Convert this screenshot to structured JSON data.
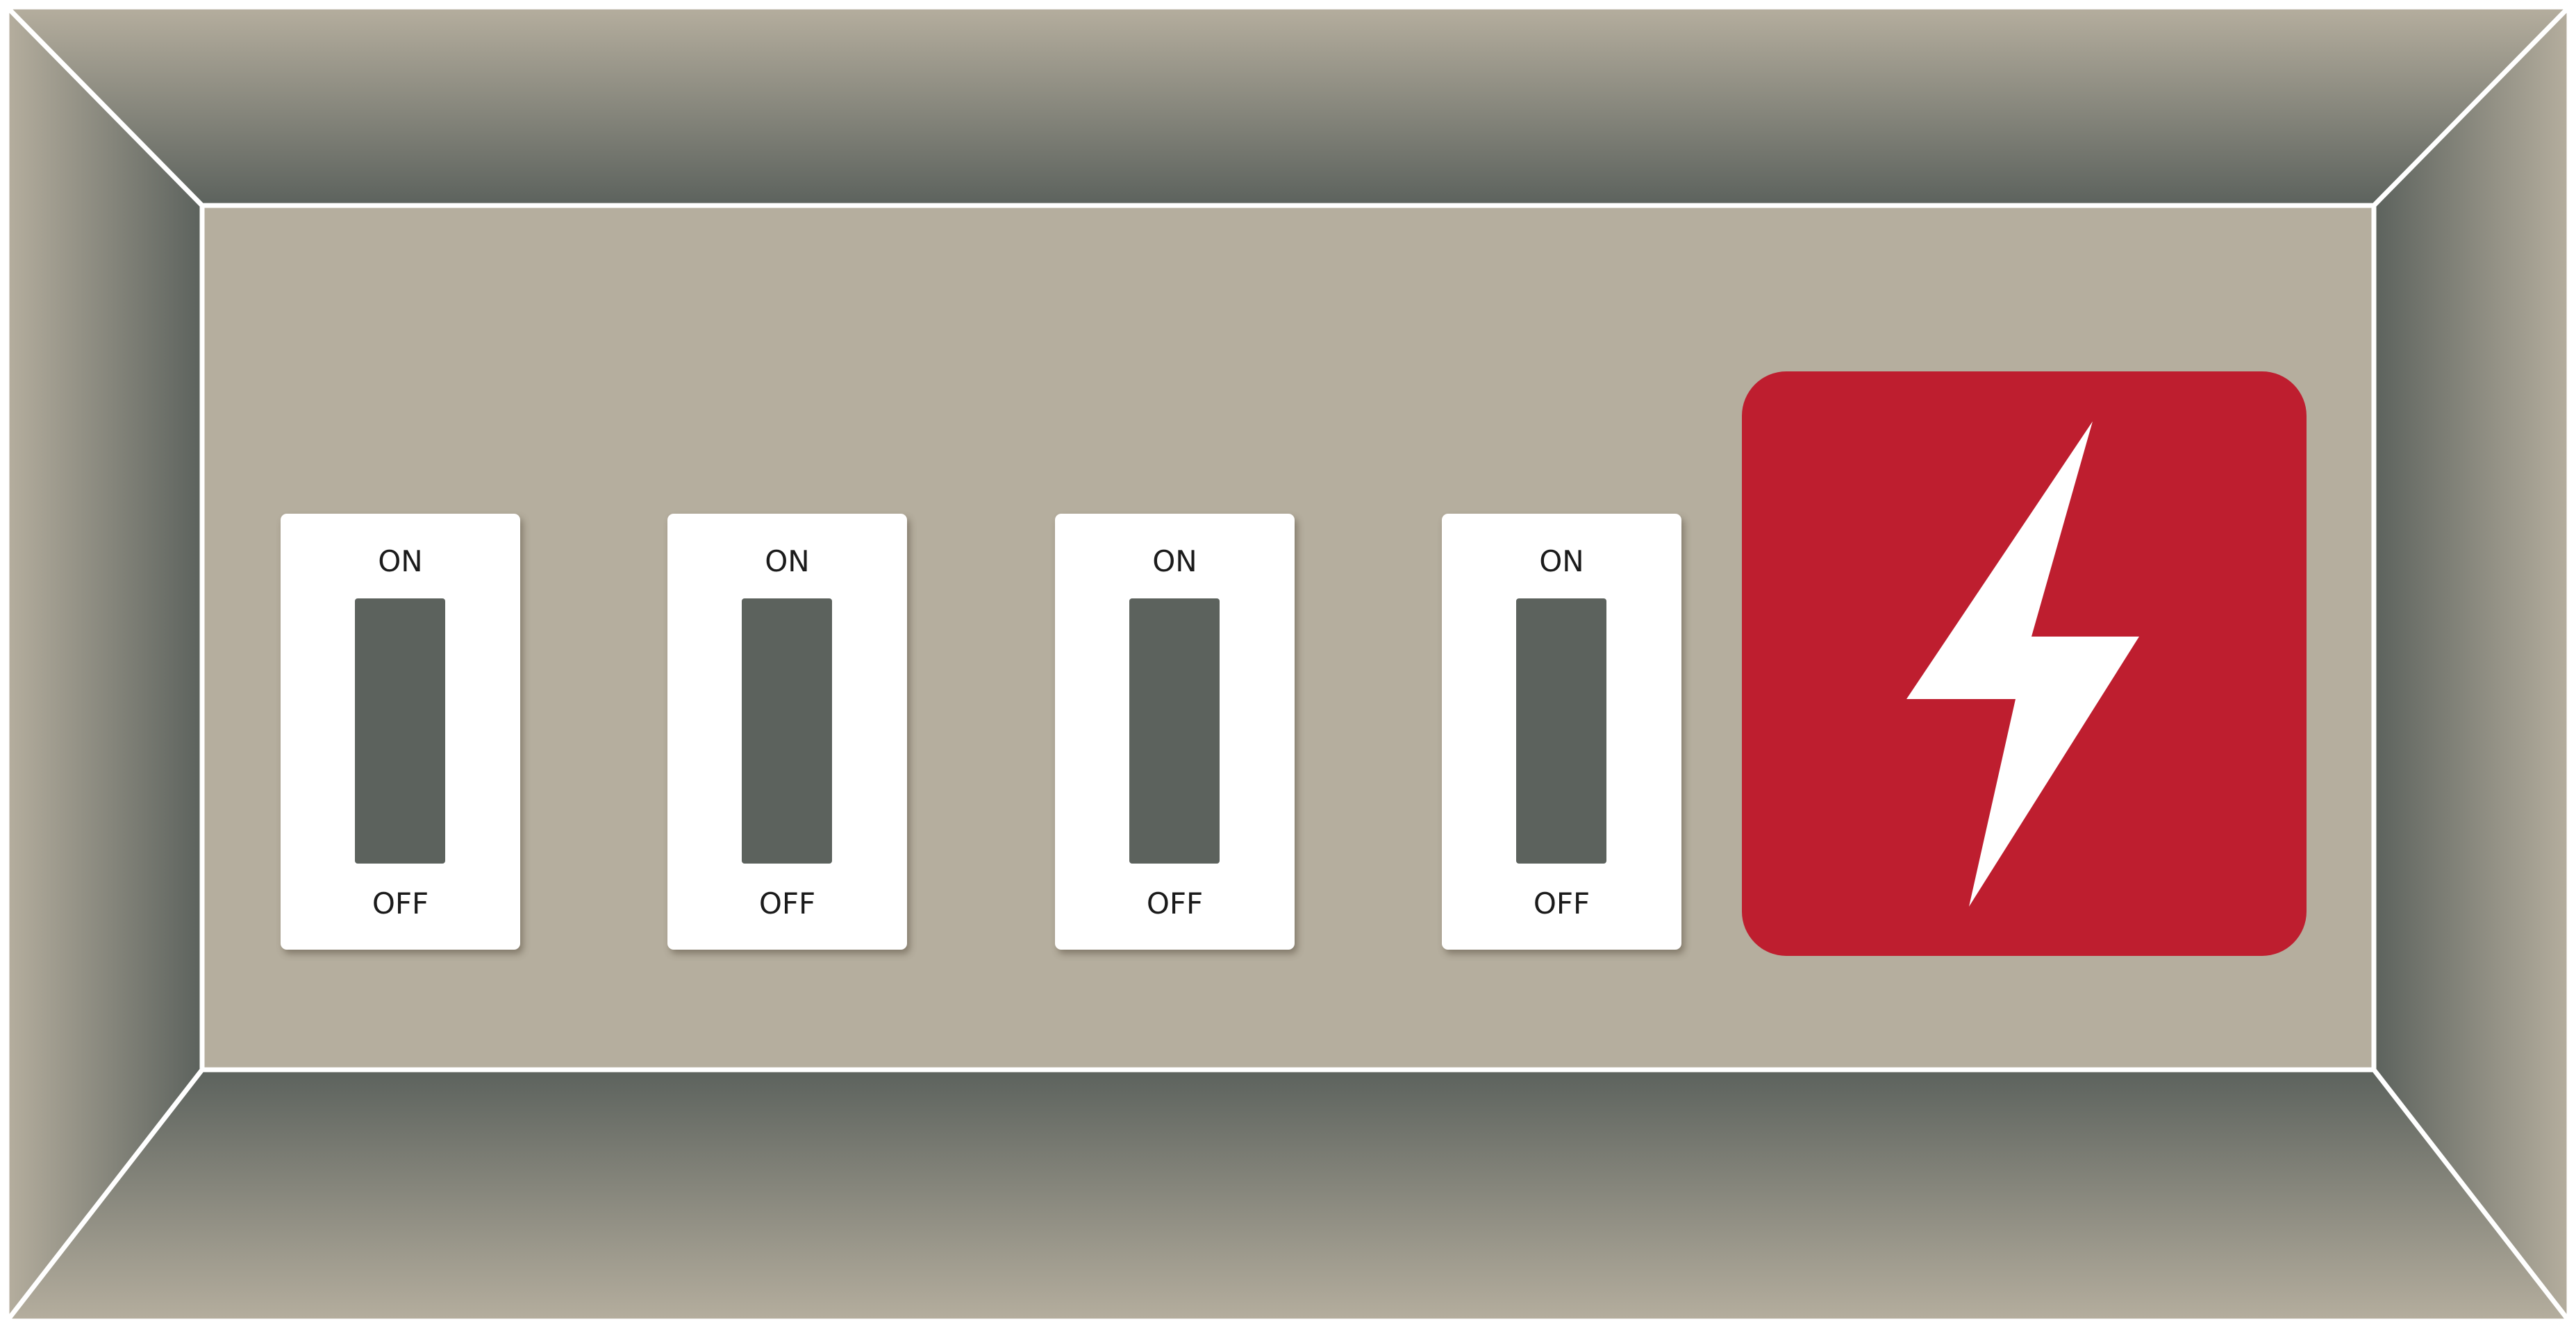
{
  "colors": {
    "panel_face": "#b5ae9e",
    "bevel_dark": "#5c625d",
    "bevel_light": "#b5ae9e",
    "frame_line": "#ffffff",
    "plate": "#ffffff",
    "toggle": "#5c625d",
    "power_red": "#be1e2f",
    "bolt": "#ffffff"
  },
  "switches": [
    {
      "on_label": "ON",
      "off_label": "OFF",
      "state": "off"
    },
    {
      "on_label": "ON",
      "off_label": "OFF",
      "state": "off"
    },
    {
      "on_label": "ON",
      "off_label": "OFF",
      "state": "off"
    },
    {
      "on_label": "ON",
      "off_label": "OFF",
      "state": "off"
    }
  ],
  "power_button": {
    "icon": "lightning-bolt-icon"
  }
}
